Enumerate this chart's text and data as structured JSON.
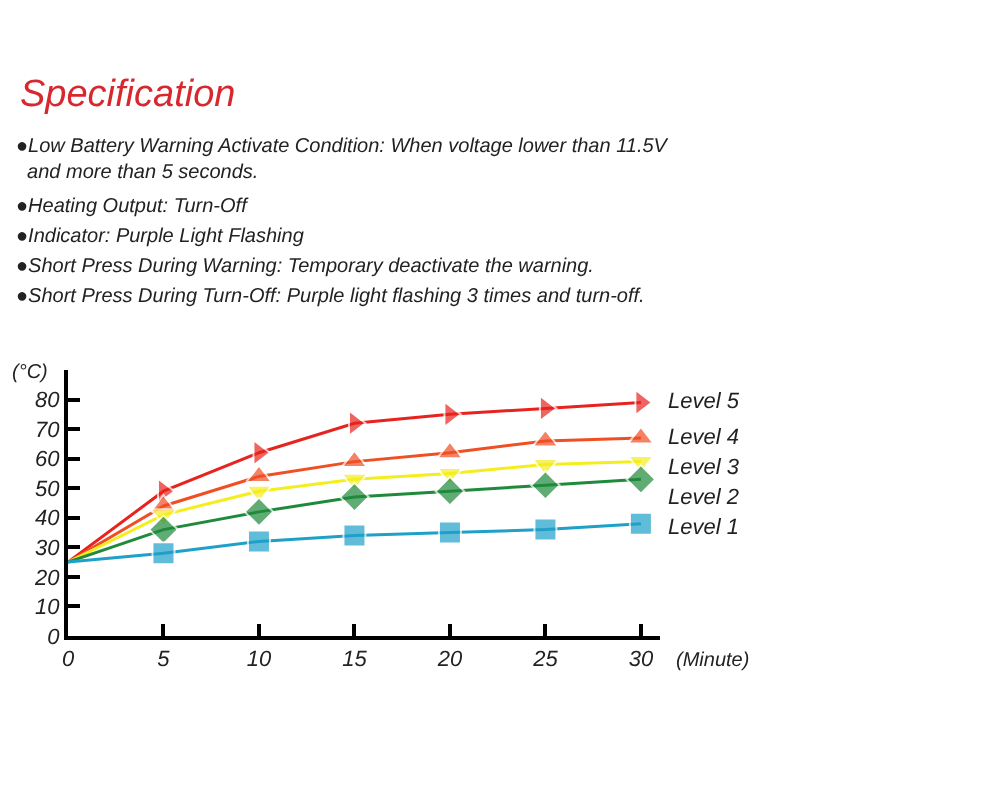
{
  "chart_data": {
    "type": "line",
    "title": "Specification",
    "annotations": [
      "●Low Battery Warning Activate Condition: When voltage lower than 11.5V\n  and more than 5 seconds.",
      "●Heating Output: Turn-Off",
      "●Indicator: Purple Light Flashing",
      "●Short Press During Warning: Temporary deactivate the warning.",
      "●Short Press During Turn-Off: Purple light flashing 3 times and turn-off."
    ],
    "xlabel": "(Minute)",
    "ylabel": "(°C)",
    "x": [
      0,
      5,
      10,
      15,
      20,
      25,
      30
    ],
    "series": [
      {
        "name": "Level 5",
        "color": "#e8231e",
        "marker": "triangle-right",
        "values": [
          25,
          49,
          62,
          72,
          75,
          77,
          79
        ]
      },
      {
        "name": "Level 4",
        "color": "#f04e23",
        "marker": "triangle-up",
        "values": [
          25,
          44,
          54,
          59,
          62,
          66,
          67
        ]
      },
      {
        "name": "Level 3",
        "color": "#f5ee1e",
        "marker": "triangle-down",
        "values": [
          25,
          41,
          49,
          53,
          55,
          58,
          59
        ]
      },
      {
        "name": "Level 2",
        "color": "#1f8a3b",
        "marker": "diamond",
        "values": [
          25,
          36,
          42,
          47,
          49,
          51,
          53
        ]
      },
      {
        "name": "Level 1",
        "color": "#1ea0c8",
        "marker": "square",
        "values": [
          25,
          28,
          32,
          34,
          35,
          36,
          38
        ]
      }
    ],
    "xlim": [
      0,
      31
    ],
    "ylim": [
      0,
      90
    ],
    "xticks": [
      0,
      5,
      10,
      15,
      20,
      25,
      30
    ],
    "yticks": [
      0,
      10,
      20,
      30,
      40,
      50,
      60,
      70,
      80
    ],
    "legend": false
  }
}
